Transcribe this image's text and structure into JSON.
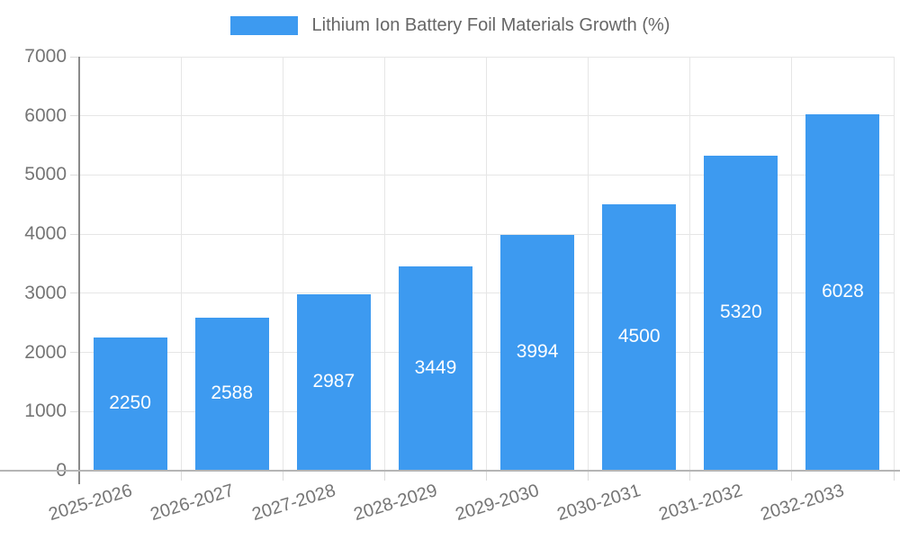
{
  "legend": {
    "label": "Lithium Ion Battery Foil Materials Growth (%)"
  },
  "chart_data": {
    "type": "bar",
    "title": "Lithium Ion Battery Foil Materials Growth (%)",
    "categories": [
      "2025-2026",
      "2026-2027",
      "2027-2028",
      "2028-2029",
      "2029-2030",
      "2030-2031",
      "2031-2032",
      "2032-2033"
    ],
    "values": [
      2250,
      2588,
      2987,
      3449,
      3994,
      4500,
      5320,
      6028
    ],
    "xlabel": "",
    "ylabel": "",
    "ylim": [
      0,
      7000
    ],
    "yticks": [
      0,
      1000,
      2000,
      3000,
      4000,
      5000,
      6000,
      7000
    ],
    "grid": true,
    "legend_position": "top",
    "colors": {
      "bar": "#3d9af0",
      "value_label": "#ffffff",
      "grid": "#e6e6e6",
      "tick_text": "#757575",
      "legend_text": "#666666",
      "axis_line": "#8a8a8a",
      "baseline": "#b5b5b5"
    }
  }
}
